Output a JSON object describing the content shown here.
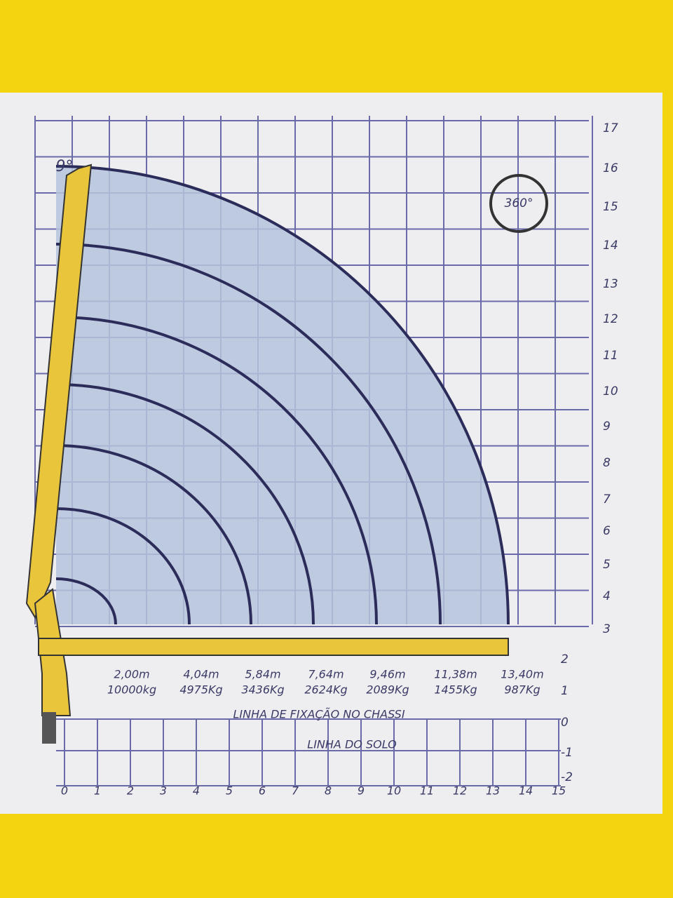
{
  "angle_label": "9°",
  "rotation_label": "360°",
  "right_axis": [
    "17",
    "16",
    "15",
    "14",
    "13",
    "12",
    "11",
    "10",
    "9",
    "8",
    "7",
    "6",
    "5",
    "4",
    "3",
    "2",
    "1",
    "0",
    "-1",
    "-2"
  ],
  "bottom_axis": [
    "0",
    "1",
    "2",
    "3",
    "4",
    "5",
    "6",
    "7",
    "8",
    "9",
    "10",
    "11",
    "12",
    "13",
    "14",
    "15"
  ],
  "loads": [
    {
      "reach": "2,00m",
      "load": "10000kg"
    },
    {
      "reach": "4,04m",
      "load": "4975Kg"
    },
    {
      "reach": "5,84m",
      "load": "3436Kg"
    },
    {
      "reach": "7,64m",
      "load": "2624Kg"
    },
    {
      "reach": "9,46m",
      "load": "2089Kg"
    },
    {
      "reach": "11,38m",
      "load": "1455Kg"
    },
    {
      "reach": "13,40m",
      "load": "987Kg"
    }
  ],
  "chassis_line": "LINHA DE FIXAÇÃO NO CHASSI",
  "ground_line": "LINHA DO SOLO"
}
